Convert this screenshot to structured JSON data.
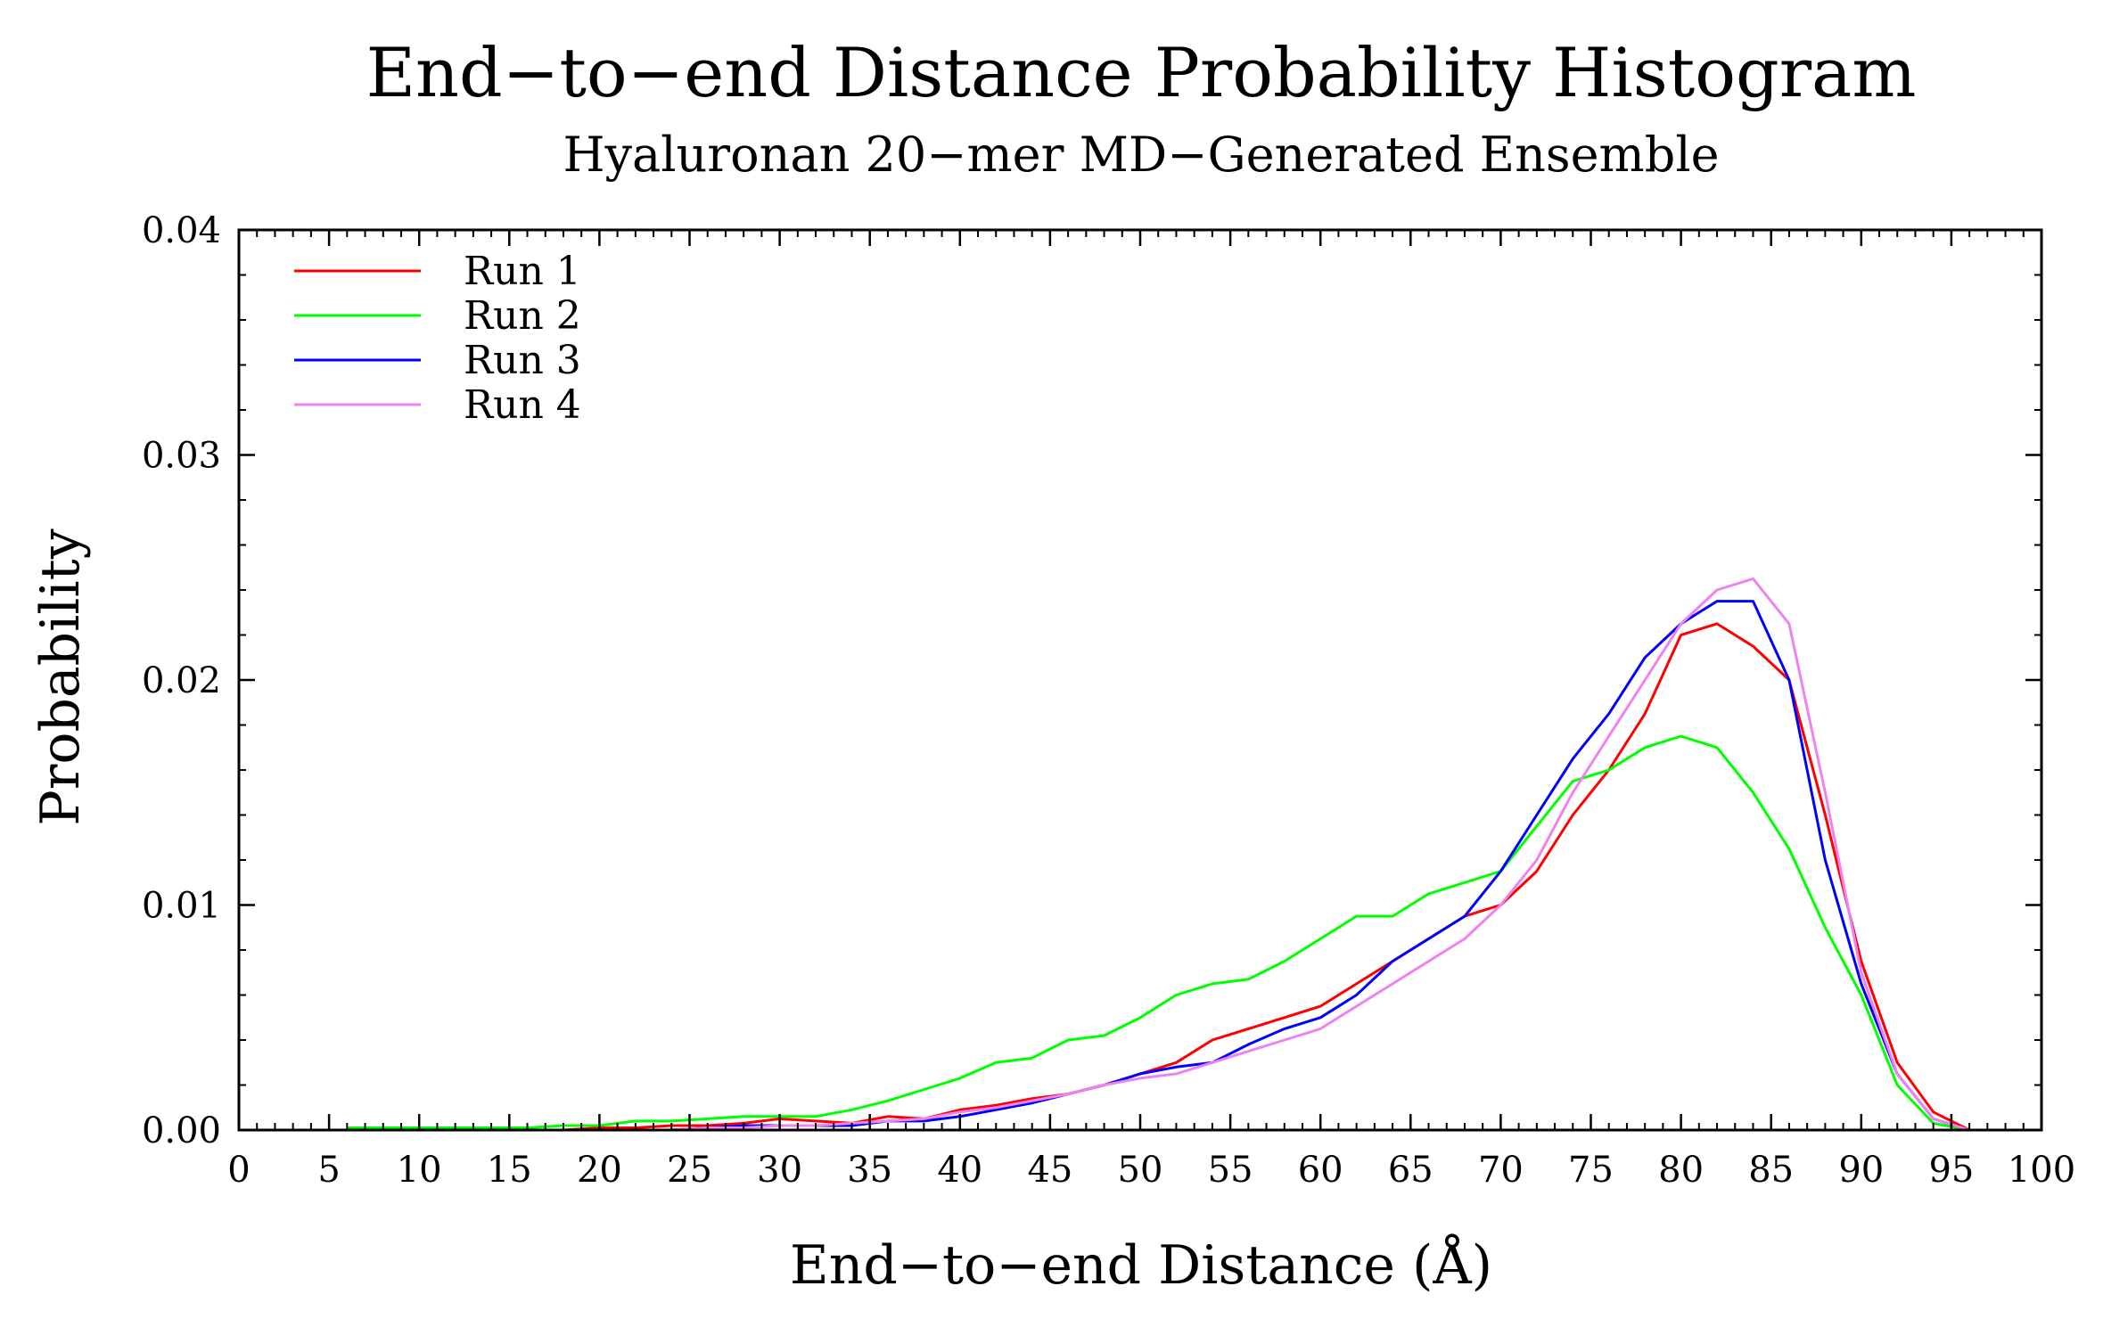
{
  "chart_data": {
    "type": "line",
    "title": "End−to−end Distance Probability Histogram",
    "subtitle": "Hyaluronan 20−mer MD−Generated Ensemble",
    "xlabel": "End−to−end Distance (Å)",
    "ylabel": "Probability",
    "xlim": [
      0,
      100
    ],
    "ylim": [
      0,
      0.04
    ],
    "x_ticks": [
      0,
      5,
      10,
      15,
      20,
      25,
      30,
      35,
      40,
      45,
      50,
      55,
      60,
      65,
      70,
      75,
      80,
      85,
      90,
      95,
      100
    ],
    "y_ticks": [
      0,
      0.01,
      0.02,
      0.03,
      0.04
    ],
    "y_tick_labels": [
      "0.00",
      "0.01",
      "0.02",
      "0.03",
      "0.04"
    ],
    "legend_position": "top-left",
    "x": [
      6,
      8,
      10,
      12,
      14,
      16,
      18,
      20,
      22,
      24,
      26,
      28,
      30,
      32,
      34,
      36,
      38,
      40,
      42,
      44,
      46,
      48,
      50,
      52,
      54,
      56,
      58,
      60,
      62,
      64,
      66,
      68,
      70,
      72,
      74,
      76,
      78,
      80,
      82,
      84,
      86,
      88,
      90,
      92,
      94,
      96
    ],
    "series": [
      {
        "name": "Run 1",
        "color": "#ff0000",
        "values": [
          0,
          0,
          0,
          0,
          0.0001,
          0,
          0,
          0.0001,
          0.0001,
          0.0002,
          0.0002,
          0.0003,
          0.0005,
          0.0004,
          0.0003,
          0.0006,
          0.0005,
          0.0009,
          0.0011,
          0.0014,
          0.0016,
          0.002,
          0.0025,
          0.003,
          0.004,
          0.0045,
          0.005,
          0.0055,
          0.0065,
          0.0075,
          0.0085,
          0.0095,
          0.01,
          0.0115,
          0.014,
          0.016,
          0.0185,
          0.022,
          0.0225,
          0.0215,
          0.02,
          0.014,
          0.0075,
          0.003,
          0.0008,
          0
        ]
      },
      {
        "name": "Run 2",
        "color": "#00ff00",
        "values": [
          0.0001,
          0.0001,
          0.0001,
          0.0001,
          0.0001,
          0.0001,
          0.0002,
          0.0002,
          0.0004,
          0.0004,
          0.0005,
          0.0006,
          0.0006,
          0.0006,
          0.0009,
          0.0013,
          0.0018,
          0.0023,
          0.003,
          0.0032,
          0.004,
          0.0042,
          0.005,
          0.006,
          0.0065,
          0.0067,
          0.0075,
          0.0085,
          0.0095,
          0.0095,
          0.0105,
          0.011,
          0.0115,
          0.0135,
          0.0155,
          0.016,
          0.017,
          0.0175,
          0.017,
          0.015,
          0.0125,
          0.009,
          0.006,
          0.002,
          0.0003,
          0
        ]
      },
      {
        "name": "Run 3",
        "color": "#0000ff",
        "values": [
          0,
          0,
          0,
          0,
          0,
          0,
          0,
          0,
          0,
          0,
          0.0001,
          0.0002,
          0.0002,
          0.0002,
          0.0002,
          0.0004,
          0.0004,
          0.0006,
          0.0009,
          0.0012,
          0.0016,
          0.002,
          0.0025,
          0.0028,
          0.003,
          0.0038,
          0.0045,
          0.005,
          0.006,
          0.0075,
          0.0085,
          0.0095,
          0.0115,
          0.014,
          0.0165,
          0.0185,
          0.021,
          0.0225,
          0.0235,
          0.0235,
          0.02,
          0.012,
          0.0065,
          0.0025,
          0.0005,
          0
        ]
      },
      {
        "name": "Run 4",
        "color": "#ee82ee",
        "values": [
          0,
          0,
          0,
          0,
          0,
          0,
          0,
          0,
          0,
          0,
          0.0001,
          0.0001,
          0.0002,
          0.0002,
          0.0003,
          0.0004,
          0.0005,
          0.0008,
          0.001,
          0.0013,
          0.0016,
          0.002,
          0.0023,
          0.0025,
          0.003,
          0.0035,
          0.004,
          0.0045,
          0.0055,
          0.0065,
          0.0075,
          0.0085,
          0.01,
          0.012,
          0.015,
          0.0175,
          0.02,
          0.0225,
          0.024,
          0.0245,
          0.0225,
          0.015,
          0.007,
          0.0025,
          0.0005,
          0
        ]
      }
    ]
  }
}
